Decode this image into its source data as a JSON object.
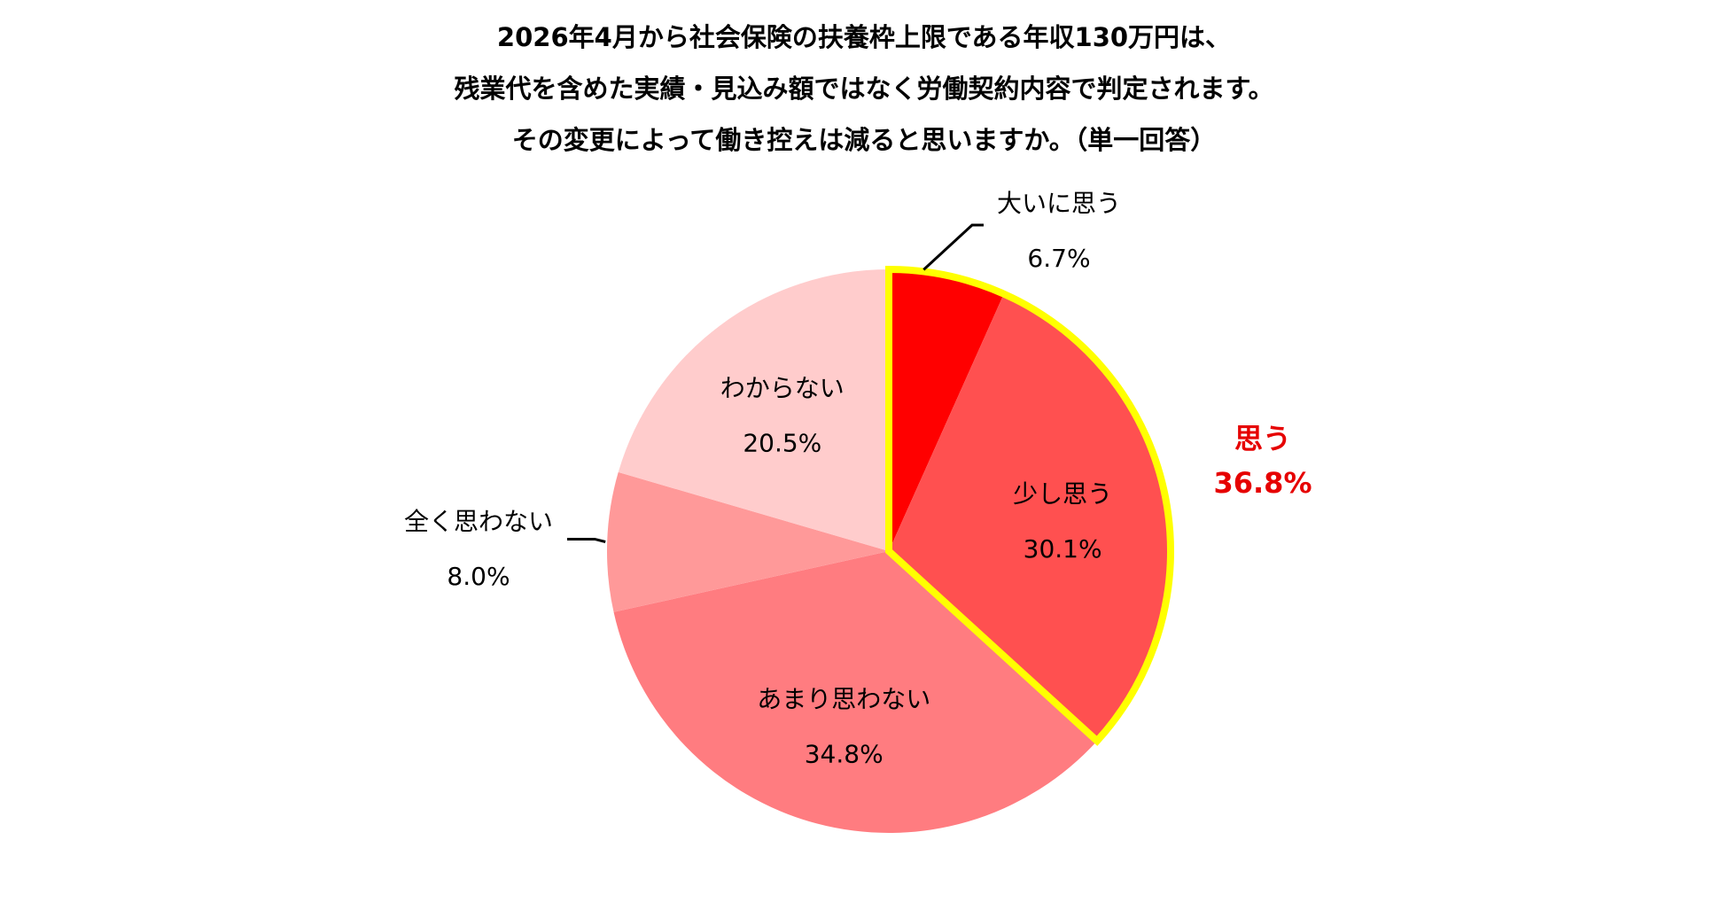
{
  "title_lines": [
    "2026年4月から社会保険の扶養枠上限である年収130万円は、",
    "残業代を含めた実績・見込み額ではなく労働契約内容で判定されます。",
    "その変更によって働き控えは減ると思いますか。（単一回答）"
  ],
  "chart_data": {
    "type": "pie",
    "start": "top",
    "direction": "clockwise",
    "slices": [
      {
        "label": "大いに思う",
        "value": 6.7,
        "display": "6.7%",
        "color": "#ff0000"
      },
      {
        "label": "少し思う",
        "value": 30.1,
        "display": "30.1%",
        "color": "#ff5050"
      },
      {
        "label": "あまり思わない",
        "value": 34.8,
        "display": "34.8%",
        "color": "#ff7c80"
      },
      {
        "label": "全く思わない",
        "value": 8.0,
        "display": "8.0%",
        "color": "#ff9999"
      },
      {
        "label": "わからない",
        "value": 20.5,
        "display": "20.5%",
        "color": "#ffcccc"
      }
    ],
    "highlight_group": {
      "label": "思う",
      "value": 36.8,
      "display": "36.8%",
      "members": [
        "大いに思う",
        "少し思う"
      ],
      "outline_color": "#ffff00",
      "text_color": "#e60000"
    }
  }
}
